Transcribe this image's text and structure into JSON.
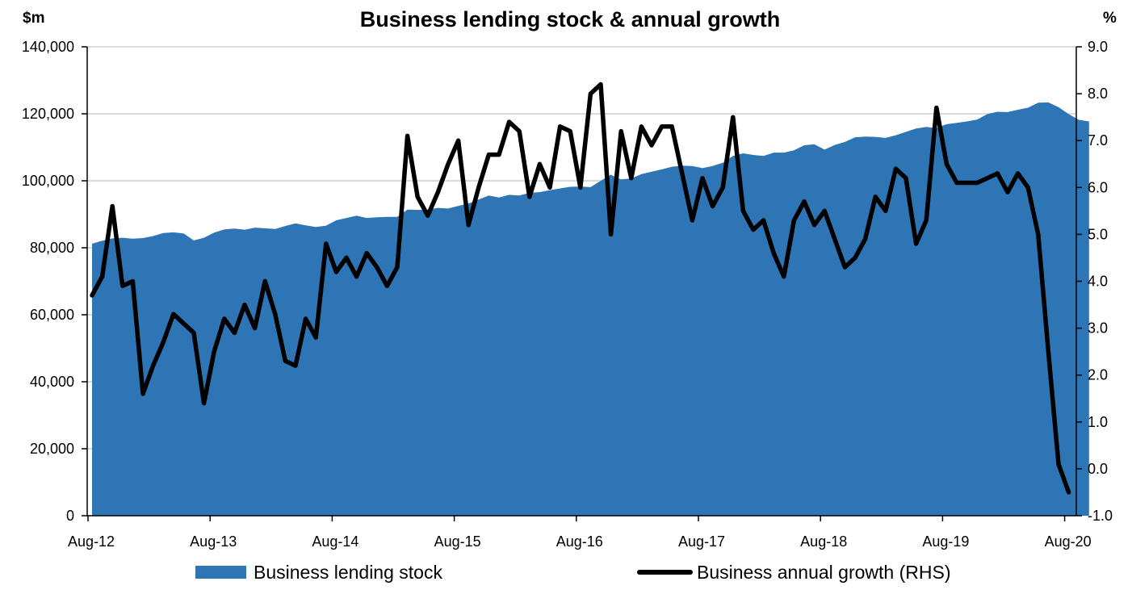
{
  "chart_data": {
    "type": "area",
    "title": "Business lending stock & annual growth",
    "left_unit": "$m",
    "right_unit": "%",
    "x_tick_labels": [
      "Aug-12",
      "Aug-13",
      "Aug-14",
      "Aug-15",
      "Aug-16",
      "Aug-17",
      "Aug-18",
      "Aug-19",
      "Aug-20"
    ],
    "y_left": {
      "min": 0,
      "max": 140000,
      "step": 20000,
      "tick_labels": [
        "0",
        "20,000",
        "40,000",
        "60,000",
        "80,000",
        "100,000",
        "120,000",
        "140,000"
      ]
    },
    "y_right": {
      "min": -1.0,
      "max": 9.0,
      "step": 1.0,
      "tick_labels": [
        "-1.0",
        "0.0",
        "1.0",
        "2.0",
        "3.0",
        "4.0",
        "5.0",
        "6.0",
        "7.0",
        "8.0",
        "9.0"
      ]
    },
    "grid": "horizontal",
    "legend_position": "bottom",
    "colors": {
      "area": "#2E75B6",
      "line": "#000000",
      "grid": "#D9D9D9"
    },
    "series": [
      {
        "name": "Business lending stock",
        "kind": "area",
        "axis": "left",
        "start": "Aug-12",
        "frequency": "monthly",
        "values": [
          81200,
          82100,
          82800,
          83000,
          82700,
          82900,
          83500,
          84400,
          84600,
          84300,
          82200,
          83000,
          84500,
          85500,
          85700,
          85400,
          86000,
          85800,
          85600,
          86500,
          87300,
          86700,
          86200,
          86600,
          88200,
          88900,
          89600,
          88900,
          89100,
          89200,
          89200,
          91400,
          91300,
          91400,
          91900,
          91700,
          92500,
          93200,
          94400,
          95600,
          95000,
          95800,
          95600,
          96400,
          96600,
          97200,
          97700,
          98200,
          98300,
          98100,
          100000,
          101800,
          100400,
          100700,
          102000,
          102700,
          103400,
          104200,
          104500,
          104400,
          103800,
          104400,
          105400,
          107400,
          108200,
          107700,
          107400,
          108400,
          108400,
          109100,
          110600,
          110900,
          109300,
          110700,
          111600,
          113000,
          113200,
          113100,
          112800,
          113600,
          114600,
          115600,
          116100,
          115700,
          116900,
          117300,
          117700,
          118300,
          119900,
          120600,
          120500,
          121200,
          121800,
          123300,
          123400,
          122000,
          119900,
          118200,
          117700
        ]
      },
      {
        "name": "Business annual growth (RHS)",
        "kind": "line",
        "axis": "right",
        "start": "Aug-12",
        "frequency": "monthly",
        "values": [
          3.7,
          4.1,
          5.6,
          3.9,
          4.0,
          1.6,
          2.2,
          2.7,
          3.3,
          3.1,
          2.9,
          1.4,
          2.5,
          3.2,
          2.9,
          3.5,
          3.0,
          4.0,
          3.3,
          2.3,
          2.2,
          3.2,
          2.8,
          4.8,
          4.2,
          4.5,
          4.1,
          4.6,
          4.3,
          3.9,
          4.3,
          7.1,
          5.8,
          5.4,
          5.9,
          6.5,
          7.0,
          5.2,
          6.0,
          6.7,
          6.7,
          7.4,
          7.2,
          5.8,
          6.5,
          6.0,
          7.3,
          7.2,
          6.0,
          8.0,
          8.2,
          5.0,
          7.2,
          6.2,
          7.3,
          6.9,
          7.3,
          7.3,
          6.3,
          5.3,
          6.2,
          5.6,
          6.0,
          7.5,
          5.5,
          5.1,
          5.3,
          4.6,
          4.1,
          5.3,
          5.7,
          5.2,
          5.5,
          4.9,
          4.3,
          4.5,
          4.9,
          5.8,
          5.5,
          6.4,
          6.2,
          4.8,
          5.3,
          7.7,
          6.5,
          6.1,
          6.1,
          6.1,
          6.2,
          6.3,
          5.9,
          6.3,
          6.0,
          5.0,
          2.5,
          0.1,
          -0.5
        ]
      }
    ],
    "legend": [
      {
        "label": "Business lending stock",
        "swatch": "area"
      },
      {
        "label": "Business annual growth (RHS)",
        "swatch": "line"
      }
    ]
  }
}
